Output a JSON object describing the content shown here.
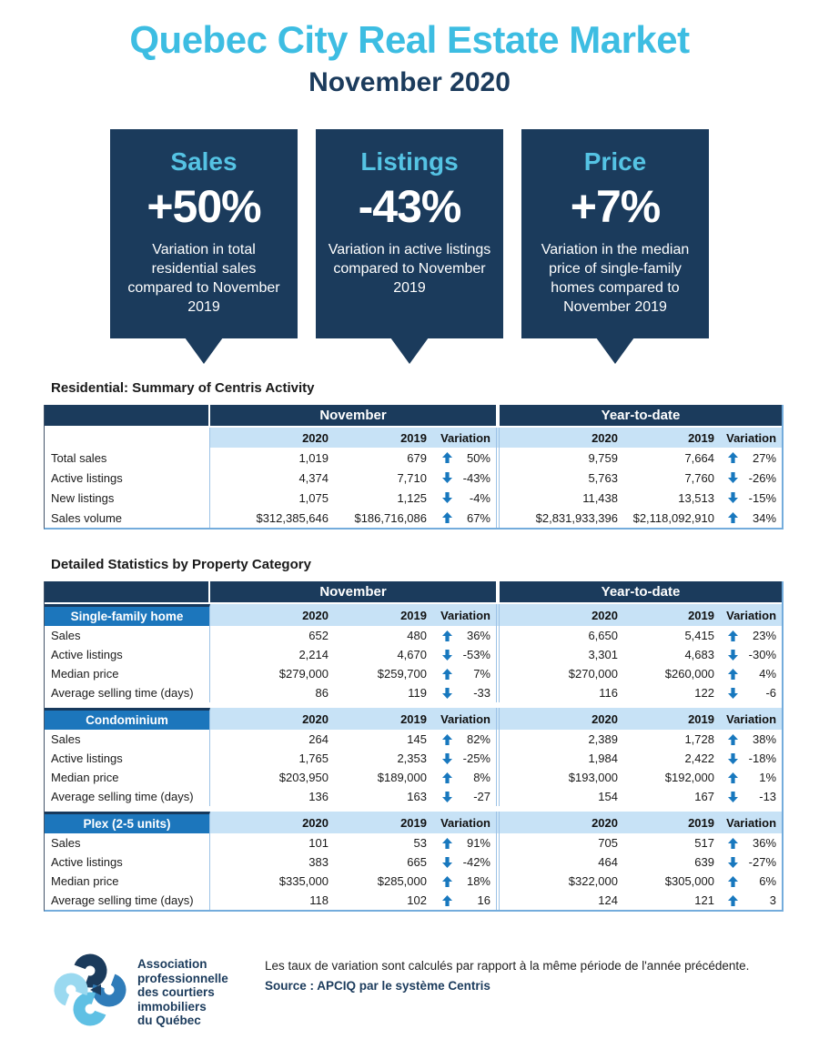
{
  "page": {
    "title": "Quebec City Real Estate Market",
    "subtitle": "November 2020"
  },
  "callouts": [
    {
      "title": "Sales",
      "value": "+50%",
      "description": "Variation in total residential sales compared to November 2019"
    },
    {
      "title": "Listings",
      "value": "-43%",
      "description": "Variation in active listings compared to November 2019"
    },
    {
      "title": "Price",
      "value": "+7%",
      "description": "Variation in the median price of single-family homes compared to November 2019"
    }
  ],
  "summary_table": {
    "section_title": "Residential: Summary of Centris Activity",
    "group_nov": "November",
    "group_ytd": "Year-to-date",
    "cols": {
      "c2020": "2020",
      "c2019": "2019",
      "cvar": "Variation"
    },
    "rows": [
      {
        "label": "Total sales",
        "nov_2020": "1,019",
        "nov_2019": "679",
        "nov_dir": "up",
        "nov_var": "50%",
        "ytd_2020": "9,759",
        "ytd_2019": "7,664",
        "ytd_dir": "up",
        "ytd_var": "27%"
      },
      {
        "label": "Active listings",
        "nov_2020": "4,374",
        "nov_2019": "7,710",
        "nov_dir": "down",
        "nov_var": "-43%",
        "ytd_2020": "5,763",
        "ytd_2019": "7,760",
        "ytd_dir": "down",
        "ytd_var": "-26%"
      },
      {
        "label": "New listings",
        "nov_2020": "1,075",
        "nov_2019": "1,125",
        "nov_dir": "down",
        "nov_var": "-4%",
        "ytd_2020": "11,438",
        "ytd_2019": "13,513",
        "ytd_dir": "down",
        "ytd_var": "-15%"
      },
      {
        "label": "Sales volume",
        "nov_2020": "$312,385,646",
        "nov_2019": "$186,716,086",
        "nov_dir": "up",
        "nov_var": "67%",
        "ytd_2020": "$2,831,933,396",
        "ytd_2019": "$2,118,092,910",
        "ytd_dir": "up",
        "ytd_var": "34%"
      }
    ]
  },
  "detail_table": {
    "section_title": "Detailed Statistics by Property Category",
    "group_nov": "November",
    "group_ytd": "Year-to-date",
    "cols": {
      "c2020": "2020",
      "c2019": "2019",
      "cvar": "Variation"
    },
    "sections": [
      {
        "category": "Single-family home",
        "rows": [
          {
            "label": "Sales",
            "nov_2020": "652",
            "nov_2019": "480",
            "nov_dir": "up",
            "nov_var": "36%",
            "ytd_2020": "6,650",
            "ytd_2019": "5,415",
            "ytd_dir": "up",
            "ytd_var": "23%"
          },
          {
            "label": "Active listings",
            "nov_2020": "2,214",
            "nov_2019": "4,670",
            "nov_dir": "down",
            "nov_var": "-53%",
            "ytd_2020": "3,301",
            "ytd_2019": "4,683",
            "ytd_dir": "down",
            "ytd_var": "-30%"
          },
          {
            "label": "Median price",
            "nov_2020": "$279,000",
            "nov_2019": "$259,700",
            "nov_dir": "up",
            "nov_var": "7%",
            "ytd_2020": "$270,000",
            "ytd_2019": "$260,000",
            "ytd_dir": "up",
            "ytd_var": "4%"
          },
          {
            "label": "Average selling time (days)",
            "nov_2020": "86",
            "nov_2019": "119",
            "nov_dir": "down",
            "nov_var": "-33",
            "ytd_2020": "116",
            "ytd_2019": "122",
            "ytd_dir": "down",
            "ytd_var": "-6"
          }
        ]
      },
      {
        "category": "Condominium",
        "rows": [
          {
            "label": "Sales",
            "nov_2020": "264",
            "nov_2019": "145",
            "nov_dir": "up",
            "nov_var": "82%",
            "ytd_2020": "2,389",
            "ytd_2019": "1,728",
            "ytd_dir": "up",
            "ytd_var": "38%"
          },
          {
            "label": "Active listings",
            "nov_2020": "1,765",
            "nov_2019": "2,353",
            "nov_dir": "down",
            "nov_var": "-25%",
            "ytd_2020": "1,984",
            "ytd_2019": "2,422",
            "ytd_dir": "down",
            "ytd_var": "-18%"
          },
          {
            "label": "Median price",
            "nov_2020": "$203,950",
            "nov_2019": "$189,000",
            "nov_dir": "up",
            "nov_var": "8%",
            "ytd_2020": "$193,000",
            "ytd_2019": "$192,000",
            "ytd_dir": "up",
            "ytd_var": "1%"
          },
          {
            "label": "Average selling time (days)",
            "nov_2020": "136",
            "nov_2019": "163",
            "nov_dir": "down",
            "nov_var": "-27",
            "ytd_2020": "154",
            "ytd_2019": "167",
            "ytd_dir": "down",
            "ytd_var": "-13"
          }
        ]
      },
      {
        "category": "Plex (2-5 units)",
        "rows": [
          {
            "label": "Sales",
            "nov_2020": "101",
            "nov_2019": "53",
            "nov_dir": "up",
            "nov_var": "91%",
            "ytd_2020": "705",
            "ytd_2019": "517",
            "ytd_dir": "up",
            "ytd_var": "36%"
          },
          {
            "label": "Active listings",
            "nov_2020": "383",
            "nov_2019": "665",
            "nov_dir": "down",
            "nov_var": "-42%",
            "ytd_2020": "464",
            "ytd_2019": "639",
            "ytd_dir": "down",
            "ytd_var": "-27%"
          },
          {
            "label": "Median price",
            "nov_2020": "$335,000",
            "nov_2019": "$285,000",
            "nov_dir": "up",
            "nov_var": "18%",
            "ytd_2020": "$322,000",
            "ytd_2019": "$305,000",
            "ytd_dir": "up",
            "ytd_var": "6%"
          },
          {
            "label": "Average selling time (days)",
            "nov_2020": "118",
            "nov_2019": "102",
            "nov_dir": "up",
            "nov_var": "16",
            "ytd_2020": "124",
            "ytd_2019": "121",
            "ytd_dir": "up",
            "ytd_var": "3"
          }
        ]
      }
    ]
  },
  "footer": {
    "logo_lines": [
      "Association",
      "professionnelle",
      "des courtiers",
      "immobiliers",
      "du Québec"
    ],
    "note": "Les taux de variation sont calculés par rapport à la même période de l'année précédente.",
    "source": "Source : APCIQ par le système Centris"
  },
  "colors": {
    "navy": "#1B3B5C",
    "title_cyan": "#3DBDE2",
    "card_heading_cyan": "#55C3E4",
    "category_blue": "#1C76BC",
    "subheader_bg": "#C7E2F6",
    "divider_blue": "#9DC3E6",
    "arrow_blue": "#1878BE"
  }
}
